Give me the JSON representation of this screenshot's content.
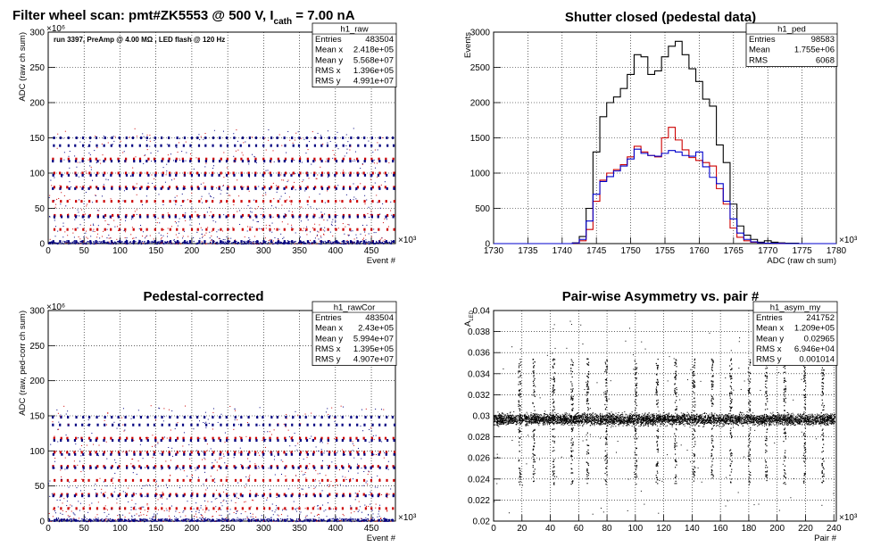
{
  "chart_data": [
    {
      "type": "scatter",
      "title": "Filter wheel scan: pmt#ZK5553 @   500 V, I",
      "title_sub": "cath",
      "title_tail": " = 7.00 nA",
      "xlabel": "Event #",
      "ylabel": "ADC (raw ch sum)",
      "x_multiplier": "×10³",
      "y_multiplier": "×10⁶",
      "xlim": [
        0,
        483.5
      ],
      "ylim": [
        0,
        300
      ],
      "xticks": [
        0,
        50,
        100,
        150,
        200,
        250,
        300,
        350,
        400,
        450
      ],
      "yticks": [
        0,
        50,
        100,
        150,
        200,
        250,
        300
      ],
      "grid": true,
      "annotation": "run 3397, PreAmp @ 4.00 MΩ , LED flash @  120 Hz",
      "stats": {
        "name": "h1_raw",
        "rows": [
          [
            "Entries",
            "483504"
          ],
          [
            "Mean x",
            "2.418e+05"
          ],
          [
            "Mean y",
            "5.568e+07"
          ],
          [
            "RMS x",
            "1.396e+05"
          ],
          [
            "RMS y",
            "4.991e+07"
          ]
        ]
      },
      "levels": [
        {
          "y": 150,
          "color": "#000080"
        },
        {
          "y": 139,
          "color": "#000080"
        },
        {
          "y": 120,
          "color": "#cc0000"
        },
        {
          "y": 117,
          "color": "#000080"
        },
        {
          "y": 100,
          "color": "#cc0000"
        },
        {
          "y": 97,
          "color": "#000080"
        },
        {
          "y": 80,
          "color": "#cc0000"
        },
        {
          "y": 78,
          "color": "#000080"
        },
        {
          "y": 60,
          "color": "#cc0000"
        },
        {
          "y": 40,
          "color": "#cc0000"
        },
        {
          "y": 38,
          "color": "#000080"
        },
        {
          "y": 20,
          "color": "#cc0000"
        },
        {
          "y": 3,
          "color": "#000080"
        }
      ],
      "series_colors": [
        "#000080",
        "#cc0000"
      ]
    },
    {
      "type": "line",
      "title": "Shutter closed (pedestal data)",
      "xlabel": "ADC (raw ch sum)",
      "ylabel": "Events",
      "x_multiplier": "×10³",
      "xlim": [
        1730,
        1780
      ],
      "ylim": [
        0,
        3000
      ],
      "xticks": [
        1730,
        1735,
        1740,
        1745,
        1750,
        1755,
        1760,
        1765,
        1770,
        1775,
        1780
      ],
      "yticks": [
        0,
        500,
        1000,
        1500,
        2000,
        2500,
        3000
      ],
      "grid": true,
      "stats": {
        "name": "h1_ped",
        "rows": [
          [
            "Entries",
            "98583"
          ],
          [
            "Mean",
            "1.755e+06"
          ],
          [
            "RMS",
            "6068"
          ]
        ]
      },
      "series": [
        {
          "color": "#000000",
          "x": [
            1742,
            1743,
            1744,
            1745,
            1746,
            1747,
            1748,
            1749,
            1750,
            1751,
            1752,
            1753,
            1754,
            1755,
            1756,
            1757,
            1758,
            1759,
            1760,
            1761,
            1762,
            1763,
            1764,
            1765,
            1766,
            1767,
            1768,
            1769,
            1770,
            1771,
            1772,
            1773,
            1774,
            1775
          ],
          "values": [
            10,
            100,
            500,
            1300,
            1800,
            2000,
            2080,
            2200,
            2400,
            2680,
            2650,
            2400,
            2450,
            2650,
            2800,
            2870,
            2680,
            2480,
            2300,
            2050,
            1950,
            1400,
            1150,
            560,
            250,
            120,
            60,
            20,
            40,
            20,
            10,
            5,
            5,
            0
          ]
        },
        {
          "color": "#cc0000",
          "x": [
            1742,
            1743,
            1744,
            1745,
            1746,
            1747,
            1748,
            1749,
            1750,
            1751,
            1752,
            1753,
            1754,
            1755,
            1756,
            1757,
            1758,
            1759,
            1760,
            1761,
            1762,
            1763,
            1764,
            1765,
            1766,
            1767,
            1768,
            1769,
            1770,
            1771,
            1772,
            1773,
            1774,
            1775
          ],
          "values": [
            5,
            40,
            200,
            600,
            900,
            1000,
            1050,
            1120,
            1230,
            1380,
            1300,
            1250,
            1230,
            1500,
            1650,
            1470,
            1330,
            1220,
            1180,
            1150,
            1100,
            780,
            560,
            220,
            90,
            40,
            20,
            10,
            5,
            5,
            2,
            0,
            0,
            0
          ]
        },
        {
          "color": "#0000cc",
          "x": [
            1742,
            1743,
            1744,
            1745,
            1746,
            1747,
            1748,
            1749,
            1750,
            1751,
            1752,
            1753,
            1754,
            1755,
            1756,
            1757,
            1758,
            1759,
            1760,
            1761,
            1762,
            1763,
            1764,
            1765,
            1766,
            1767,
            1768,
            1769,
            1770,
            1771,
            1772,
            1773,
            1774,
            1775
          ],
          "values": [
            8,
            60,
            320,
            700,
            880,
            950,
            1030,
            1100,
            1200,
            1340,
            1280,
            1250,
            1240,
            1280,
            1320,
            1300,
            1250,
            1240,
            1300,
            1090,
            940,
            850,
            600,
            350,
            150,
            60,
            25,
            10,
            5,
            5,
            2,
            0,
            0,
            0
          ]
        }
      ]
    },
    {
      "type": "scatter",
      "title": "Pedestal-corrected",
      "xlabel": "Event #",
      "ylabel": "ADC (raw, ped-corr ch sum)",
      "x_multiplier": "×10³",
      "y_multiplier": "×10⁶",
      "xlim": [
        0,
        483.5
      ],
      "ylim": [
        0,
        300
      ],
      "xticks": [
        0,
        50,
        100,
        150,
        200,
        250,
        300,
        350,
        400,
        450
      ],
      "yticks": [
        0,
        50,
        100,
        150,
        200,
        250,
        300
      ],
      "grid": true,
      "stats": {
        "name": "h1_rawCor",
        "rows": [
          [
            "Entries",
            "483504"
          ],
          [
            "Mean x",
            "2.43e+05"
          ],
          [
            "Mean y",
            "5.994e+07"
          ],
          [
            "RMS x",
            "1.395e+05"
          ],
          [
            "RMS y",
            "4.907e+07"
          ]
        ]
      },
      "levels": [
        {
          "y": 148,
          "color": "#000080"
        },
        {
          "y": 137,
          "color": "#000080"
        },
        {
          "y": 118,
          "color": "#cc0000"
        },
        {
          "y": 115,
          "color": "#000080"
        },
        {
          "y": 98,
          "color": "#cc0000"
        },
        {
          "y": 95,
          "color": "#000080"
        },
        {
          "y": 78,
          "color": "#cc0000"
        },
        {
          "y": 76,
          "color": "#000080"
        },
        {
          "y": 58,
          "color": "#cc0000"
        },
        {
          "y": 38,
          "color": "#cc0000"
        },
        {
          "y": 36,
          "color": "#000080"
        },
        {
          "y": 18,
          "color": "#cc0000"
        },
        {
          "y": 1,
          "color": "#000080"
        }
      ],
      "series_colors": [
        "#000080",
        "#cc0000"
      ]
    },
    {
      "type": "scatter",
      "title": "Pair-wise Asymmetry vs. pair #",
      "xlabel": "Pair #",
      "ylabel": "A",
      "ylabel_sub": "LED",
      "x_multiplier": "×10³",
      "xlim": [
        0,
        241.75
      ],
      "ylim": [
        0.02,
        0.04
      ],
      "xticks": [
        0,
        20,
        40,
        60,
        80,
        100,
        120,
        140,
        160,
        180,
        200,
        220,
        240
      ],
      "yticks": [
        0.02,
        0.022,
        0.024,
        0.026,
        0.028,
        0.03,
        0.032,
        0.034,
        0.036,
        0.038,
        0.04
      ],
      "grid": true,
      "stats": {
        "name": "h1_asym_my",
        "rows": [
          [
            "Entries",
            "241752"
          ],
          [
            "Mean x",
            "1.209e+05"
          ],
          [
            "Mean y",
            "0.02965"
          ],
          [
            "RMS x",
            "6.946e+04"
          ],
          [
            "RMS y",
            "0.001014"
          ]
        ]
      },
      "band_center": 0.0297,
      "band_halfwidth": 0.0008,
      "spike_positions": [
        18,
        28,
        42,
        55,
        66,
        79,
        100,
        115,
        128,
        141,
        154,
        167,
        180,
        192,
        205,
        219,
        232
      ],
      "spike_top": 0.0355,
      "spike_bottom": 0.0235,
      "series_colors": [
        "#000000"
      ]
    }
  ]
}
